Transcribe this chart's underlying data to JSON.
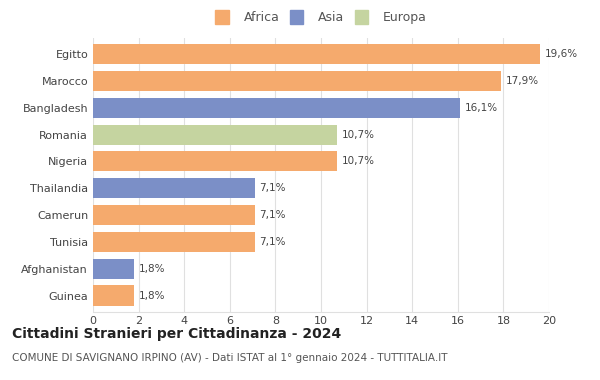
{
  "categories": [
    "Guinea",
    "Afghanistan",
    "Tunisia",
    "Camerun",
    "Thailandia",
    "Nigeria",
    "Romania",
    "Bangladesh",
    "Marocco",
    "Egitto"
  ],
  "values": [
    1.8,
    1.8,
    7.1,
    7.1,
    7.1,
    10.7,
    10.7,
    16.1,
    17.9,
    19.6
  ],
  "labels": [
    "1,8%",
    "1,8%",
    "7,1%",
    "7,1%",
    "7,1%",
    "10,7%",
    "10,7%",
    "16,1%",
    "17,9%",
    "19,6%"
  ],
  "colors": [
    "#F5AA6D",
    "#7B8FC7",
    "#F5AA6D",
    "#F5AA6D",
    "#7B8FC7",
    "#F5AA6D",
    "#C5D4A0",
    "#7B8FC7",
    "#F5AA6D",
    "#F5AA6D"
  ],
  "legend_labels": [
    "Africa",
    "Asia",
    "Europa"
  ],
  "legend_colors": [
    "#F5AA6D",
    "#7B8FC7",
    "#C5D4A0"
  ],
  "title": "Cittadini Stranieri per Cittadinanza - 2024",
  "subtitle": "COMUNE DI SAVIGNANO IRPINO (AV) - Dati ISTAT al 1° gennaio 2024 - TUTTITALIA.IT",
  "xlim": [
    0,
    20
  ],
  "xticks": [
    0,
    2,
    4,
    6,
    8,
    10,
    12,
    14,
    16,
    18,
    20
  ],
  "background_color": "#ffffff",
  "grid_color": "#e0e0e0",
  "title_fontsize": 10,
  "subtitle_fontsize": 7.5,
  "label_fontsize": 7.5,
  "tick_fontsize": 8,
  "bar_height": 0.75
}
